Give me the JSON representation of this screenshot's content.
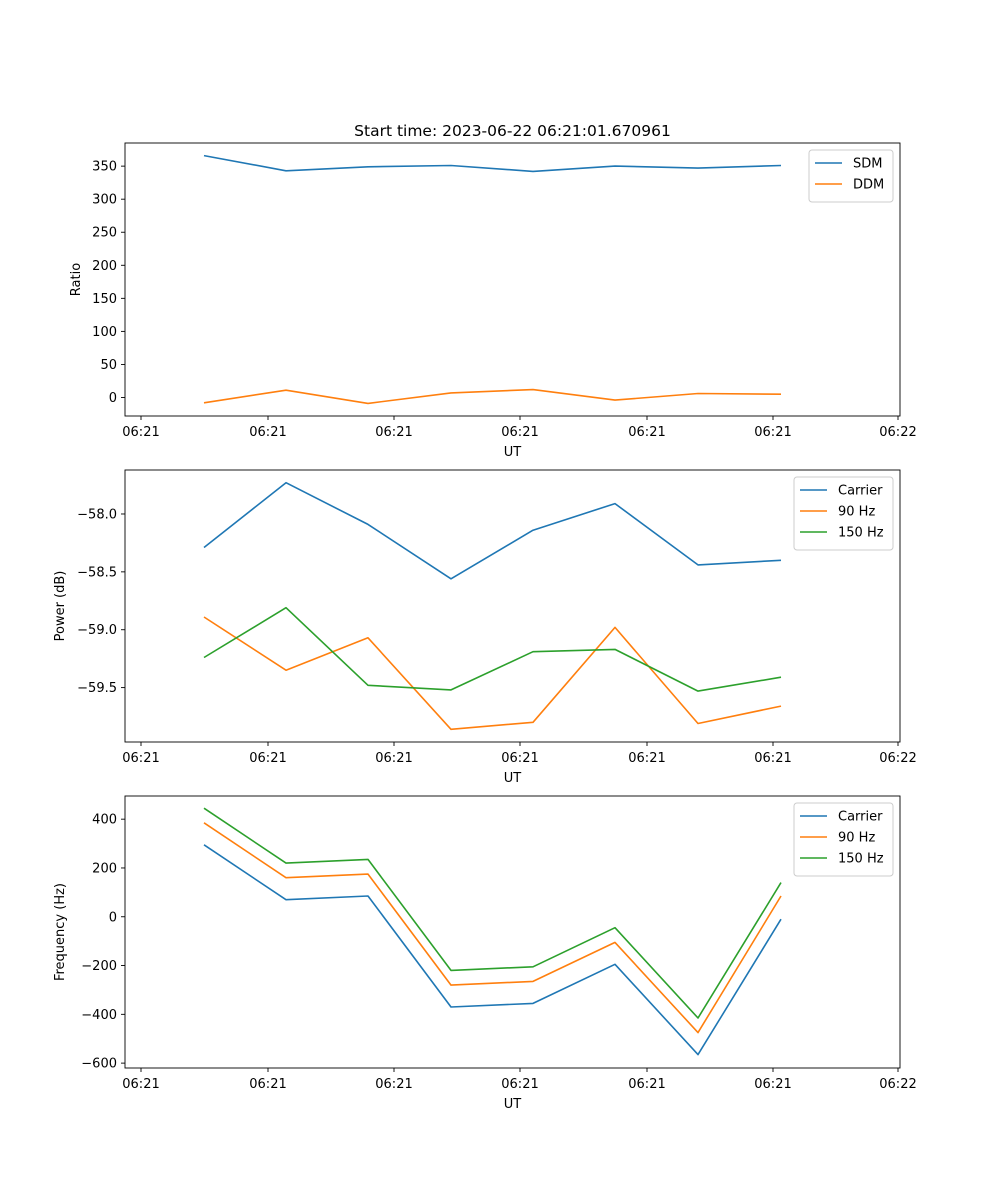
{
  "title": "Start time: 2023-06-22 06:21:01.670961",
  "chart_data": [
    {
      "type": "line",
      "xlabel": "UT",
      "ylabel": "Ratio",
      "x_tick_labels": [
        "06:21",
        "06:21",
        "06:21",
        "06:21",
        "06:21",
        "06:21",
        "06:22"
      ],
      "y_ticks": [
        0,
        50,
        100,
        150,
        200,
        250,
        300,
        350
      ],
      "ylim": [
        -28,
        385
      ],
      "legend_position": "top-right",
      "grid": false,
      "series": [
        {
          "name": "SDM",
          "color": "#1f77b4",
          "values": [
            366,
            343,
            349,
            351,
            342,
            350,
            347,
            351
          ]
        },
        {
          "name": "DDM",
          "color": "#ff7f0e",
          "values": [
            -8,
            11,
            -9,
            7,
            12,
            -4,
            6,
            5
          ]
        }
      ]
    },
    {
      "type": "line",
      "xlabel": "UT",
      "ylabel": "Power (dB)",
      "x_tick_labels": [
        "06:21",
        "06:21",
        "06:21",
        "06:21",
        "06:21",
        "06:21",
        "06:22"
      ],
      "y_ticks": [
        -59.5,
        -59.0,
        -58.5,
        -58.0
      ],
      "y_tick_labels": [
        "−59.5",
        "−59.0",
        "−58.5",
        "−58.0"
      ],
      "ylim": [
        -59.97,
        -57.62
      ],
      "legend_position": "top-right",
      "grid": false,
      "series": [
        {
          "name": "Carrier",
          "color": "#1f77b4",
          "values": [
            -58.29,
            -57.73,
            -58.09,
            -58.56,
            -58.14,
            -57.91,
            -58.44,
            -58.4
          ]
        },
        {
          "name": "90 Hz",
          "color": "#ff7f0e",
          "values": [
            -58.89,
            -59.35,
            -59.07,
            -59.86,
            -59.8,
            -58.98,
            -59.81,
            -59.66
          ]
        },
        {
          "name": "150 Hz",
          "color": "#2ca02c",
          "values": [
            -59.24,
            -58.81,
            -59.48,
            -59.52,
            -59.19,
            -59.17,
            -59.53,
            -59.41
          ]
        }
      ]
    },
    {
      "type": "line",
      "xlabel": "UT",
      "ylabel": "Frequency (Hz)",
      "x_tick_labels": [
        "06:21",
        "06:21",
        "06:21",
        "06:21",
        "06:21",
        "06:21",
        "06:22"
      ],
      "y_ticks": [
        -600,
        -400,
        -200,
        0,
        200,
        400
      ],
      "y_tick_labels": [
        "−600",
        "−400",
        "−200",
        "0",
        "200",
        "400"
      ],
      "ylim": [
        -620,
        495
      ],
      "legend_position": "top-right",
      "grid": false,
      "series": [
        {
          "name": "Carrier",
          "color": "#1f77b4",
          "values": [
            295,
            70,
            85,
            -370,
            -355,
            -195,
            -565,
            -10
          ]
        },
        {
          "name": "90 Hz",
          "color": "#ff7f0e",
          "values": [
            385,
            160,
            175,
            -280,
            -265,
            -105,
            -475,
            85
          ]
        },
        {
          "name": "150 Hz",
          "color": "#2ca02c",
          "values": [
            445,
            220,
            235,
            -220,
            -205,
            -45,
            -415,
            140
          ]
        }
      ]
    }
  ]
}
